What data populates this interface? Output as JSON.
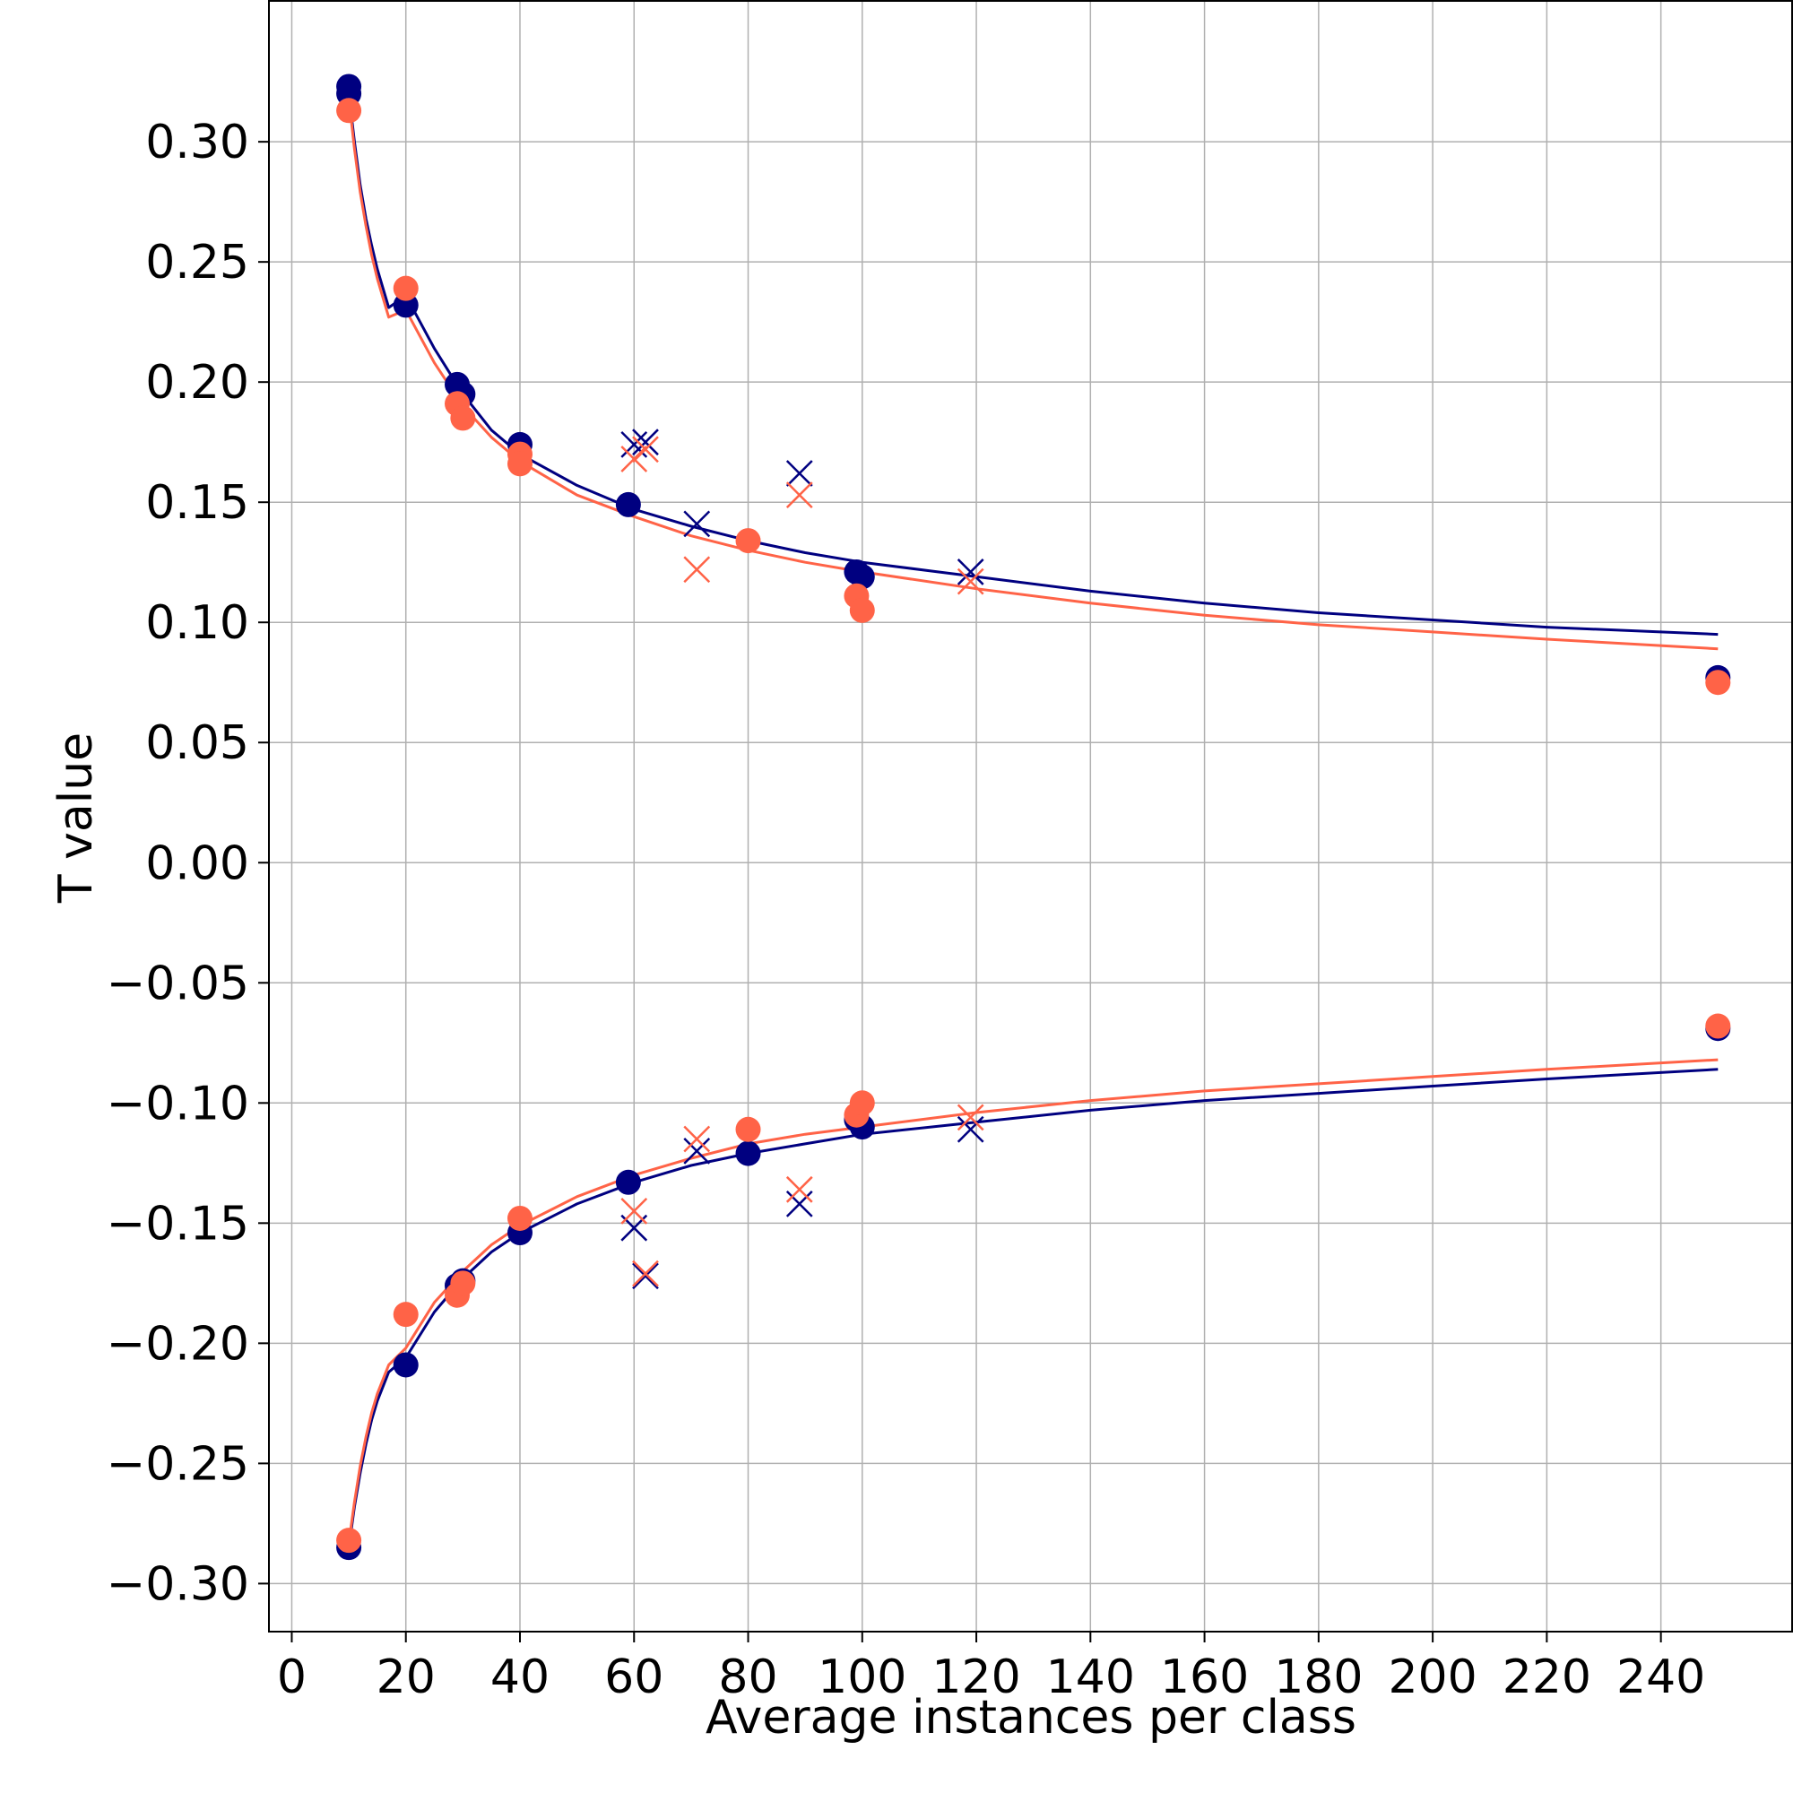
{
  "chart_data": {
    "type": "scatter",
    "title": "",
    "xlabel": "Average instances per class",
    "ylabel": "T value",
    "xlim": [
      -4,
      263
    ],
    "ylim": [
      -0.32,
      0.359
    ],
    "x_ticks": [
      0,
      20,
      40,
      60,
      80,
      100,
      120,
      140,
      160,
      180,
      200,
      220,
      240
    ],
    "x_tick_labels": [
      "0",
      "20",
      "40",
      "60",
      "80",
      "100",
      "120",
      "140",
      "160",
      "180",
      "200",
      "220",
      "240"
    ],
    "y_ticks": [
      0.3,
      0.25,
      0.2,
      0.15,
      0.1,
      0.05,
      0.0,
      -0.05,
      -0.1,
      -0.15,
      -0.2,
      -0.25,
      -0.3
    ],
    "y_tick_labels": [
      "0.30",
      "0.25",
      "0.20",
      "0.15",
      "0.10",
      "0.05",
      "0.00",
      "−0.05",
      "−0.10",
      "−0.15",
      "−0.20",
      "−0.25",
      "−0.30"
    ],
    "grid": true,
    "series": [
      {
        "name": "navy circles",
        "color": "#000080",
        "marker": "circle",
        "x": [
          10,
          10,
          20,
          29,
          30,
          40,
          59,
          99,
          100,
          250,
          10,
          20,
          29,
          30,
          40,
          59,
          80,
          99,
          100,
          250
        ],
        "y": [
          0.323,
          0.32,
          0.232,
          0.199,
          0.195,
          0.174,
          0.149,
          0.121,
          0.119,
          0.077,
          -0.285,
          -0.209,
          -0.176,
          -0.174,
          -0.154,
          -0.133,
          -0.121,
          -0.107,
          -0.11,
          -0.069
        ]
      },
      {
        "name": "orange circles",
        "color": "#FF6347",
        "marker": "circle",
        "x": [
          10,
          20,
          29,
          30,
          40,
          40,
          80,
          99,
          100,
          250,
          10,
          20,
          29,
          30,
          40,
          80,
          99,
          100,
          250
        ],
        "y": [
          0.313,
          0.239,
          0.191,
          0.185,
          0.17,
          0.166,
          0.134,
          0.111,
          0.105,
          0.075,
          -0.282,
          -0.188,
          -0.18,
          -0.175,
          -0.148,
          -0.111,
          -0.105,
          -0.1,
          -0.068
        ]
      },
      {
        "name": "navy crosses",
        "color": "#000080",
        "marker": "x",
        "x": [
          60,
          62,
          71,
          89,
          119,
          60,
          62,
          71,
          89,
          119
        ],
        "y": [
          0.174,
          0.175,
          0.141,
          0.162,
          0.121,
          -0.152,
          -0.172,
          -0.12,
          -0.142,
          -0.111
        ]
      },
      {
        "name": "orange crosses",
        "color": "#FF6347",
        "marker": "x",
        "x": [
          60,
          62,
          71,
          89,
          119,
          60,
          62,
          71,
          89,
          119
        ],
        "y": [
          0.168,
          0.172,
          0.122,
          0.153,
          0.117,
          -0.145,
          -0.171,
          -0.115,
          -0.136,
          -0.106
        ]
      }
    ],
    "fit_curves": [
      {
        "name": "navy fit upper",
        "color": "#000080",
        "x": [
          10,
          11,
          12,
          13,
          14,
          15,
          17,
          20,
          25,
          30,
          35,
          40,
          50,
          60,
          70,
          80,
          90,
          100,
          120,
          140,
          160,
          180,
          200,
          220,
          250
        ],
        "y": [
          0.32,
          0.3,
          0.282,
          0.268,
          0.257,
          0.247,
          0.231,
          0.236,
          0.214,
          0.195,
          0.18,
          0.17,
          0.157,
          0.147,
          0.14,
          0.134,
          0.129,
          0.125,
          0.119,
          0.113,
          0.108,
          0.104,
          0.101,
          0.098,
          0.095
        ]
      },
      {
        "name": "orange fit upper",
        "color": "#FF6347",
        "x": [
          10,
          11,
          12,
          13,
          14,
          15,
          17,
          20,
          25,
          30,
          35,
          40,
          50,
          60,
          70,
          80,
          90,
          100,
          120,
          140,
          160,
          180,
          200,
          220,
          250
        ],
        "y": [
          0.318,
          0.297,
          0.279,
          0.265,
          0.253,
          0.243,
          0.227,
          0.23,
          0.208,
          0.19,
          0.177,
          0.167,
          0.153,
          0.144,
          0.136,
          0.13,
          0.125,
          0.121,
          0.114,
          0.108,
          0.103,
          0.099,
          0.096,
          0.093,
          0.089
        ]
      },
      {
        "name": "navy fit lower",
        "color": "#000080",
        "x": [
          10,
          11,
          12,
          13,
          14,
          15,
          17,
          20,
          25,
          30,
          35,
          40,
          50,
          60,
          70,
          80,
          90,
          100,
          120,
          140,
          160,
          180,
          200,
          220,
          250
        ],
        "y": [
          -0.285,
          -0.268,
          -0.254,
          -0.242,
          -0.232,
          -0.224,
          -0.212,
          -0.206,
          -0.187,
          -0.173,
          -0.162,
          -0.154,
          -0.142,
          -0.133,
          -0.126,
          -0.121,
          -0.117,
          -0.113,
          -0.108,
          -0.103,
          -0.099,
          -0.096,
          -0.093,
          -0.09,
          -0.086
        ]
      },
      {
        "name": "orange fit lower",
        "color": "#FF6347",
        "x": [
          10,
          11,
          12,
          13,
          14,
          15,
          17,
          20,
          25,
          30,
          35,
          40,
          50,
          60,
          70,
          80,
          90,
          100,
          120,
          140,
          160,
          180,
          200,
          220,
          250
        ],
        "y": [
          -0.283,
          -0.266,
          -0.251,
          -0.239,
          -0.229,
          -0.221,
          -0.209,
          -0.202,
          -0.183,
          -0.17,
          -0.159,
          -0.151,
          -0.139,
          -0.13,
          -0.123,
          -0.117,
          -0.113,
          -0.11,
          -0.104,
          -0.099,
          -0.095,
          -0.092,
          -0.089,
          -0.086,
          -0.082
        ]
      }
    ]
  }
}
